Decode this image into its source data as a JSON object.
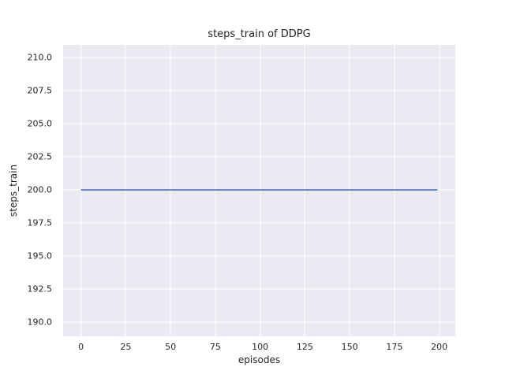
{
  "chart_data": {
    "type": "line",
    "title": "steps_train of DDPG",
    "xlabel": "episodes",
    "ylabel": "steps_train",
    "series": [
      {
        "name": "steps_train",
        "color": "#4c72b0",
        "x": [
          0,
          199
        ],
        "y": [
          200,
          200
        ]
      }
    ],
    "xlim": [
      -9.95,
      208.95
    ],
    "ylim": [
      188.95,
      210.95
    ],
    "xticks": [
      0,
      25,
      50,
      75,
      100,
      125,
      150,
      175,
      200
    ],
    "xtick_labels": [
      "0",
      "25",
      "50",
      "75",
      "100",
      "125",
      "150",
      "175",
      "200"
    ],
    "yticks": [
      190.0,
      192.5,
      195.0,
      197.5,
      200.0,
      202.5,
      205.0,
      207.5,
      210.0
    ],
    "ytick_labels": [
      "190.0",
      "192.5",
      "195.0",
      "197.5",
      "200.0",
      "202.5",
      "205.0",
      "207.5",
      "210.0"
    ],
    "grid": true,
    "legend": false,
    "style": {
      "figure_bg": "#ffffff",
      "axes_bg": "#eaeaf2",
      "grid_color": "#ffffff",
      "text_color": "#262626",
      "line_width": 1.8
    }
  }
}
